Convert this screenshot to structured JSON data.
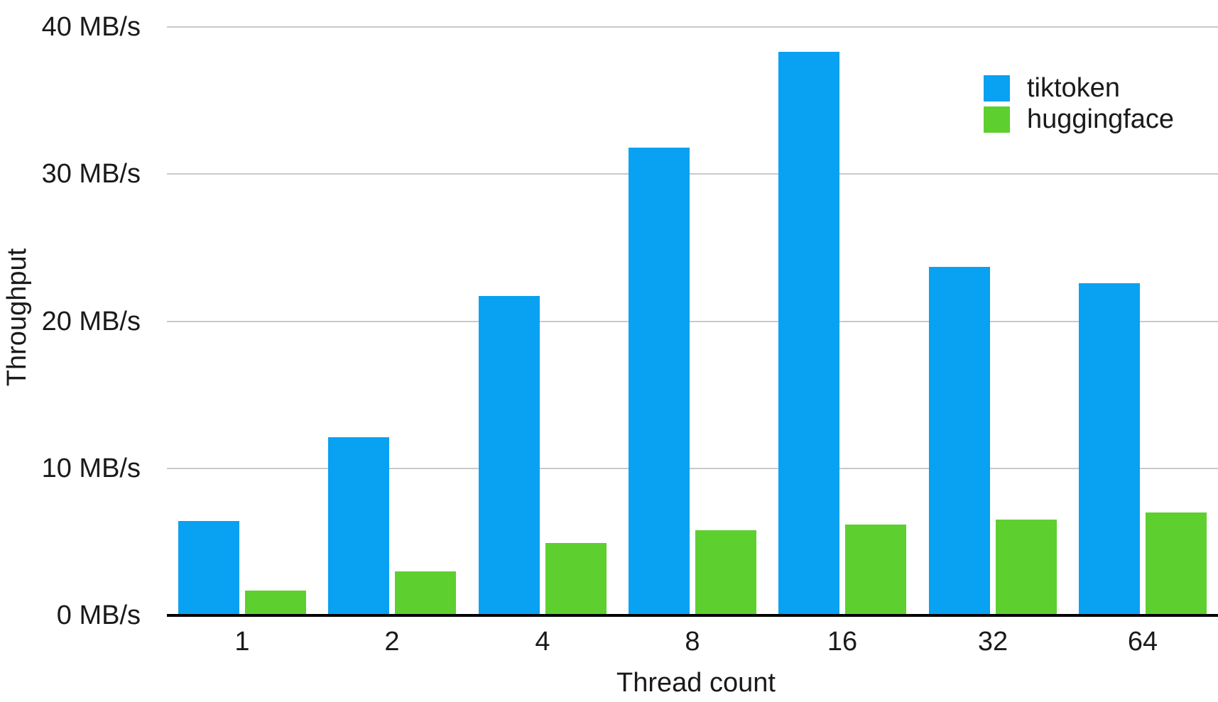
{
  "chart_data": {
    "type": "bar",
    "title": "",
    "xlabel": "Thread count",
    "ylabel": "Throughput",
    "categories": [
      "1",
      "2",
      "4",
      "8",
      "16",
      "32",
      "64"
    ],
    "series": [
      {
        "name": "tiktoken",
        "color": "#09a1f2",
        "values": [
          6.4,
          12.1,
          21.7,
          31.8,
          38.3,
          23.7,
          22.6
        ]
      },
      {
        "name": "huggingface",
        "color": "#5dcf2f",
        "values": [
          1.7,
          3.0,
          4.9,
          5.8,
          6.2,
          6.5,
          7.0
        ]
      }
    ],
    "y_ticks": [
      {
        "value": 0,
        "label": "0 MB/s"
      },
      {
        "value": 10,
        "label": "10 MB/s"
      },
      {
        "value": 20,
        "label": "20 MB/s"
      },
      {
        "value": 30,
        "label": "30 MB/s"
      },
      {
        "value": 40,
        "label": "40 MB/s"
      }
    ],
    "ylim": [
      0,
      40
    ],
    "units": "MB/s",
    "grid": true,
    "legend_position": "top-right"
  },
  "colors": {
    "background": "#ffffff",
    "gridline": "#c9c9c9",
    "axis_line": "#000000",
    "text": "#1a1a1a"
  }
}
